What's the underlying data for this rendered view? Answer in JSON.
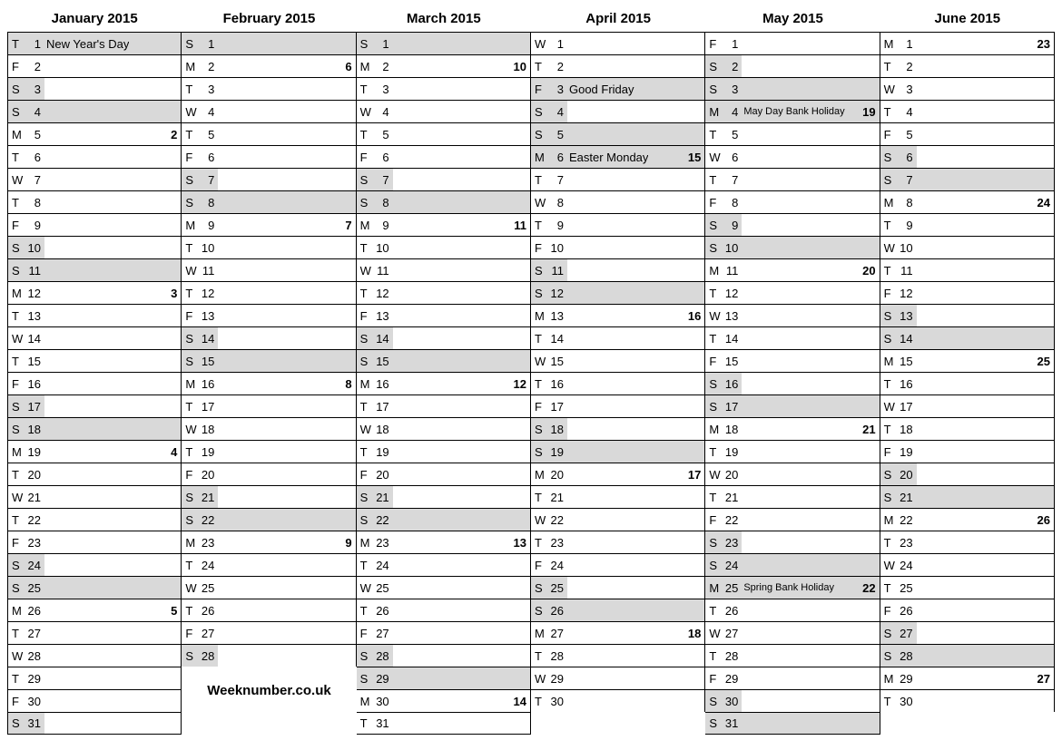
{
  "brand": "Weeknumber.co.uk",
  "months": [
    {
      "title": "January 2015",
      "days": [
        {
          "dow": "T",
          "d": 1,
          "event": "New Year's Day",
          "shade": "both"
        },
        {
          "dow": "F",
          "d": 2
        },
        {
          "dow": "S",
          "d": 3,
          "shade": "left"
        },
        {
          "dow": "S",
          "d": 4,
          "shade": "both"
        },
        {
          "dow": "M",
          "d": 5,
          "wk": 2
        },
        {
          "dow": "T",
          "d": 6
        },
        {
          "dow": "W",
          "d": 7
        },
        {
          "dow": "T",
          "d": 8
        },
        {
          "dow": "F",
          "d": 9
        },
        {
          "dow": "S",
          "d": 10,
          "shade": "left"
        },
        {
          "dow": "S",
          "d": 11,
          "shade": "both"
        },
        {
          "dow": "M",
          "d": 12,
          "wk": 3
        },
        {
          "dow": "T",
          "d": 13
        },
        {
          "dow": "W",
          "d": 14
        },
        {
          "dow": "T",
          "d": 15
        },
        {
          "dow": "F",
          "d": 16
        },
        {
          "dow": "S",
          "d": 17,
          "shade": "left"
        },
        {
          "dow": "S",
          "d": 18,
          "shade": "both"
        },
        {
          "dow": "M",
          "d": 19,
          "wk": 4
        },
        {
          "dow": "T",
          "d": 20
        },
        {
          "dow": "W",
          "d": 21
        },
        {
          "dow": "T",
          "d": 22
        },
        {
          "dow": "F",
          "d": 23
        },
        {
          "dow": "S",
          "d": 24,
          "shade": "left"
        },
        {
          "dow": "S",
          "d": 25,
          "shade": "both"
        },
        {
          "dow": "M",
          "d": 26,
          "wk": 5
        },
        {
          "dow": "T",
          "d": 27
        },
        {
          "dow": "W",
          "d": 28
        },
        {
          "dow": "T",
          "d": 29
        },
        {
          "dow": "F",
          "d": 30
        },
        {
          "dow": "S",
          "d": 31,
          "shade": "left"
        }
      ]
    },
    {
      "title": "February 2015",
      "footer_brand": true,
      "days": [
        {
          "dow": "S",
          "d": 1,
          "shade": "both"
        },
        {
          "dow": "M",
          "d": 2,
          "wk": 6
        },
        {
          "dow": "T",
          "d": 3
        },
        {
          "dow": "W",
          "d": 4
        },
        {
          "dow": "T",
          "d": 5
        },
        {
          "dow": "F",
          "d": 6
        },
        {
          "dow": "S",
          "d": 7,
          "shade": "left"
        },
        {
          "dow": "S",
          "d": 8,
          "shade": "both"
        },
        {
          "dow": "M",
          "d": 9,
          "wk": 7
        },
        {
          "dow": "T",
          "d": 10
        },
        {
          "dow": "W",
          "d": 11
        },
        {
          "dow": "T",
          "d": 12
        },
        {
          "dow": "F",
          "d": 13
        },
        {
          "dow": "S",
          "d": 14,
          "shade": "left"
        },
        {
          "dow": "S",
          "d": 15,
          "shade": "both"
        },
        {
          "dow": "M",
          "d": 16,
          "wk": 8
        },
        {
          "dow": "T",
          "d": 17
        },
        {
          "dow": "W",
          "d": 18
        },
        {
          "dow": "T",
          "d": 19
        },
        {
          "dow": "F",
          "d": 20
        },
        {
          "dow": "S",
          "d": 21,
          "shade": "left"
        },
        {
          "dow": "S",
          "d": 22,
          "shade": "both"
        },
        {
          "dow": "M",
          "d": 23,
          "wk": 9
        },
        {
          "dow": "T",
          "d": 24
        },
        {
          "dow": "W",
          "d": 25
        },
        {
          "dow": "T",
          "d": 26
        },
        {
          "dow": "F",
          "d": 27
        },
        {
          "dow": "S",
          "d": 28,
          "shade": "left"
        }
      ]
    },
    {
      "title": "March 2015",
      "days": [
        {
          "dow": "S",
          "d": 1,
          "shade": "both"
        },
        {
          "dow": "M",
          "d": 2,
          "wk": 10
        },
        {
          "dow": "T",
          "d": 3
        },
        {
          "dow": "W",
          "d": 4
        },
        {
          "dow": "T",
          "d": 5
        },
        {
          "dow": "F",
          "d": 6
        },
        {
          "dow": "S",
          "d": 7,
          "shade": "left"
        },
        {
          "dow": "S",
          "d": 8,
          "shade": "both"
        },
        {
          "dow": "M",
          "d": 9,
          "wk": 11
        },
        {
          "dow": "T",
          "d": 10
        },
        {
          "dow": "W",
          "d": 11
        },
        {
          "dow": "T",
          "d": 12
        },
        {
          "dow": "F",
          "d": 13
        },
        {
          "dow": "S",
          "d": 14,
          "shade": "left"
        },
        {
          "dow": "S",
          "d": 15,
          "shade": "both"
        },
        {
          "dow": "M",
          "d": 16,
          "wk": 12
        },
        {
          "dow": "T",
          "d": 17
        },
        {
          "dow": "W",
          "d": 18
        },
        {
          "dow": "T",
          "d": 19
        },
        {
          "dow": "F",
          "d": 20
        },
        {
          "dow": "S",
          "d": 21,
          "shade": "left"
        },
        {
          "dow": "S",
          "d": 22,
          "shade": "both"
        },
        {
          "dow": "M",
          "d": 23,
          "wk": 13
        },
        {
          "dow": "T",
          "d": 24
        },
        {
          "dow": "W",
          "d": 25
        },
        {
          "dow": "T",
          "d": 26
        },
        {
          "dow": "F",
          "d": 27
        },
        {
          "dow": "S",
          "d": 28,
          "shade": "left"
        },
        {
          "dow": "S",
          "d": 29,
          "shade": "both"
        },
        {
          "dow": "M",
          "d": 30,
          "wk": 14
        },
        {
          "dow": "T",
          "d": 31
        }
      ]
    },
    {
      "title": "April 2015",
      "days": [
        {
          "dow": "W",
          "d": 1
        },
        {
          "dow": "T",
          "d": 2
        },
        {
          "dow": "F",
          "d": 3,
          "event": "Good Friday",
          "shade": "both"
        },
        {
          "dow": "S",
          "d": 4,
          "shade": "left"
        },
        {
          "dow": "S",
          "d": 5,
          "shade": "both"
        },
        {
          "dow": "M",
          "d": 6,
          "event": "Easter Monday",
          "wk": 15,
          "shade": "both"
        },
        {
          "dow": "T",
          "d": 7
        },
        {
          "dow": "W",
          "d": 8
        },
        {
          "dow": "T",
          "d": 9
        },
        {
          "dow": "F",
          "d": 10
        },
        {
          "dow": "S",
          "d": 11,
          "shade": "left"
        },
        {
          "dow": "S",
          "d": 12,
          "shade": "both"
        },
        {
          "dow": "M",
          "d": 13,
          "wk": 16
        },
        {
          "dow": "T",
          "d": 14
        },
        {
          "dow": "W",
          "d": 15
        },
        {
          "dow": "T",
          "d": 16
        },
        {
          "dow": "F",
          "d": 17
        },
        {
          "dow": "S",
          "d": 18,
          "shade": "left"
        },
        {
          "dow": "S",
          "d": 19,
          "shade": "both"
        },
        {
          "dow": "M",
          "d": 20,
          "wk": 17
        },
        {
          "dow": "T",
          "d": 21
        },
        {
          "dow": "W",
          "d": 22
        },
        {
          "dow": "T",
          "d": 23
        },
        {
          "dow": "F",
          "d": 24
        },
        {
          "dow": "S",
          "d": 25,
          "shade": "left"
        },
        {
          "dow": "S",
          "d": 26,
          "shade": "both"
        },
        {
          "dow": "M",
          "d": 27,
          "wk": 18
        },
        {
          "dow": "T",
          "d": 28
        },
        {
          "dow": "W",
          "d": 29
        },
        {
          "dow": "T",
          "d": 30
        }
      ]
    },
    {
      "title": "May 2015",
      "days": [
        {
          "dow": "F",
          "d": 1
        },
        {
          "dow": "S",
          "d": 2,
          "shade": "left"
        },
        {
          "dow": "S",
          "d": 3,
          "shade": "both"
        },
        {
          "dow": "M",
          "d": 4,
          "event": "May Day Bank Holiday",
          "event_small": true,
          "wk": 19,
          "shade": "both"
        },
        {
          "dow": "T",
          "d": 5
        },
        {
          "dow": "W",
          "d": 6
        },
        {
          "dow": "T",
          "d": 7
        },
        {
          "dow": "F",
          "d": 8
        },
        {
          "dow": "S",
          "d": 9,
          "shade": "left"
        },
        {
          "dow": "S",
          "d": 10,
          "shade": "both"
        },
        {
          "dow": "M",
          "d": 11,
          "wk": 20
        },
        {
          "dow": "T",
          "d": 12
        },
        {
          "dow": "W",
          "d": 13
        },
        {
          "dow": "T",
          "d": 14
        },
        {
          "dow": "F",
          "d": 15
        },
        {
          "dow": "S",
          "d": 16,
          "shade": "left"
        },
        {
          "dow": "S",
          "d": 17,
          "shade": "both"
        },
        {
          "dow": "M",
          "d": 18,
          "wk": 21
        },
        {
          "dow": "T",
          "d": 19
        },
        {
          "dow": "W",
          "d": 20
        },
        {
          "dow": "T",
          "d": 21
        },
        {
          "dow": "F",
          "d": 22
        },
        {
          "dow": "S",
          "d": 23,
          "shade": "left"
        },
        {
          "dow": "S",
          "d": 24,
          "shade": "both"
        },
        {
          "dow": "M",
          "d": 25,
          "event": "Spring Bank Holiday",
          "event_small": true,
          "wk": 22,
          "shade": "both"
        },
        {
          "dow": "T",
          "d": 26
        },
        {
          "dow": "W",
          "d": 27
        },
        {
          "dow": "T",
          "d": 28
        },
        {
          "dow": "F",
          "d": 29
        },
        {
          "dow": "S",
          "d": 30,
          "shade": "left"
        },
        {
          "dow": "S",
          "d": 31,
          "shade": "both"
        }
      ]
    },
    {
      "title": "June 2015",
      "days": [
        {
          "dow": "M",
          "d": 1,
          "wk": 23
        },
        {
          "dow": "T",
          "d": 2
        },
        {
          "dow": "W",
          "d": 3
        },
        {
          "dow": "T",
          "d": 4
        },
        {
          "dow": "F",
          "d": 5
        },
        {
          "dow": "S",
          "d": 6,
          "shade": "left"
        },
        {
          "dow": "S",
          "d": 7,
          "shade": "both"
        },
        {
          "dow": "M",
          "d": 8,
          "wk": 24
        },
        {
          "dow": "T",
          "d": 9
        },
        {
          "dow": "W",
          "d": 10
        },
        {
          "dow": "T",
          "d": 11
        },
        {
          "dow": "F",
          "d": 12
        },
        {
          "dow": "S",
          "d": 13,
          "shade": "left"
        },
        {
          "dow": "S",
          "d": 14,
          "shade": "both"
        },
        {
          "dow": "M",
          "d": 15,
          "wk": 25
        },
        {
          "dow": "T",
          "d": 16
        },
        {
          "dow": "W",
          "d": 17
        },
        {
          "dow": "T",
          "d": 18
        },
        {
          "dow": "F",
          "d": 19
        },
        {
          "dow": "S",
          "d": 20,
          "shade": "left"
        },
        {
          "dow": "S",
          "d": 21,
          "shade": "both"
        },
        {
          "dow": "M",
          "d": 22,
          "wk": 26
        },
        {
          "dow": "T",
          "d": 23
        },
        {
          "dow": "W",
          "d": 24
        },
        {
          "dow": "T",
          "d": 25
        },
        {
          "dow": "F",
          "d": 26
        },
        {
          "dow": "S",
          "d": 27,
          "shade": "left"
        },
        {
          "dow": "S",
          "d": 28,
          "shade": "both"
        },
        {
          "dow": "M",
          "d": 29,
          "wk": 27
        },
        {
          "dow": "T",
          "d": 30
        }
      ]
    }
  ]
}
